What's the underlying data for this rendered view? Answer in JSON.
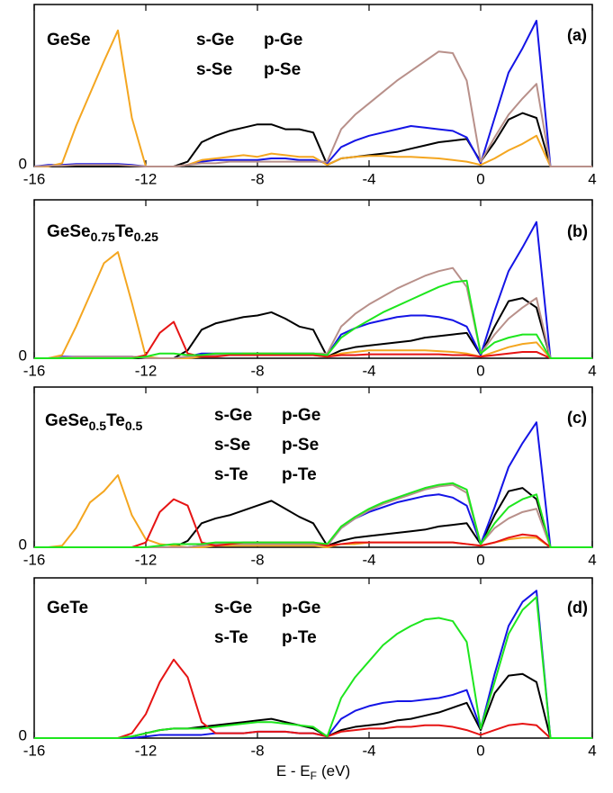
{
  "chart_data": [
    {
      "type": "line",
      "title": [
        "GeSe"
      ],
      "panel_label": "(a)",
      "x": [
        -16,
        -15.5,
        -15,
        -14.5,
        -14,
        -13.5,
        -13,
        -12.5,
        -12,
        -11.5,
        -11,
        -10.5,
        -10,
        -9.5,
        -9,
        -8.5,
        -8,
        -7.5,
        -7,
        -6.5,
        -6,
        -5.5,
        -5,
        -4.5,
        -4,
        -3.5,
        -3,
        -2.5,
        -2,
        -1.5,
        -1,
        -0.5,
        0,
        0.5,
        1,
        1.5,
        2,
        2.5,
        3,
        3.5,
        4
      ],
      "xlim": [
        -16,
        4
      ],
      "xticks": [
        -16,
        -12,
        -8,
        -4,
        0,
        4
      ],
      "ylim": [
        0,
        10
      ],
      "yticks": [
        0
      ],
      "series": [
        {
          "name": "s-Ge",
          "color": "#000000",
          "values": [
            0,
            0,
            0,
            0,
            0,
            0,
            0,
            0,
            0,
            0,
            0,
            0.3,
            1.5,
            1.9,
            2.2,
            2.4,
            2.6,
            2.6,
            2.3,
            2.3,
            2.1,
            0.1,
            0.5,
            0.6,
            0.7,
            0.8,
            0.9,
            1.1,
            1.3,
            1.5,
            1.6,
            1.7,
            0.3,
            1.5,
            2.9,
            3.3,
            3.0,
            0,
            0,
            0,
            0
          ]
        },
        {
          "name": "p-Ge",
          "color": "#1414e6",
          "values": [
            0,
            0.1,
            0.1,
            0.15,
            0.15,
            0.15,
            0.15,
            0.1,
            0,
            0,
            0,
            0.1,
            0.3,
            0.4,
            0.4,
            0.4,
            0.4,
            0.5,
            0.5,
            0.4,
            0.4,
            0.2,
            1.2,
            1.6,
            1.9,
            2.1,
            2.3,
            2.5,
            2.4,
            2.3,
            2.2,
            1.8,
            0.2,
            3.0,
            5.8,
            7.3,
            9.0,
            0,
            0,
            0,
            0
          ]
        },
        {
          "name": "s-Se",
          "color": "#f4a620",
          "values": [
            0,
            0,
            0.2,
            2.5,
            4.5,
            6.5,
            8.4,
            3.0,
            0,
            0,
            0,
            0.1,
            0.4,
            0.5,
            0.6,
            0.7,
            0.6,
            0.8,
            0.7,
            0.6,
            0.6,
            0.1,
            0.5,
            0.6,
            0.65,
            0.65,
            0.6,
            0.6,
            0.55,
            0.5,
            0.4,
            0.3,
            0.1,
            0.5,
            1.0,
            1.4,
            1.9,
            0,
            0,
            0,
            0
          ]
        },
        {
          "name": "p-Se",
          "color": "#b8908a",
          "values": [
            0,
            0.05,
            0.05,
            0.1,
            0.1,
            0.1,
            0.1,
            0.05,
            0,
            0,
            0,
            0.1,
            0.2,
            0.2,
            0.3,
            0.3,
            0.3,
            0.3,
            0.3,
            0.3,
            0.3,
            0.3,
            2.3,
            3.2,
            3.9,
            4.6,
            5.3,
            5.9,
            6.5,
            7.1,
            7.0,
            5.3,
            0.3,
            1.8,
            3.2,
            4.2,
            5.1,
            0,
            0,
            0,
            0
          ]
        }
      ]
    },
    {
      "type": "line",
      "title": [
        "GeSe",
        "0.75",
        "Te",
        "0.25"
      ],
      "panel_label": "(b)",
      "x": [
        -16,
        -15.5,
        -15,
        -14.5,
        -14,
        -13.5,
        -13,
        -12.5,
        -12,
        -11.5,
        -11,
        -10.5,
        -10,
        -9.5,
        -9,
        -8.5,
        -8,
        -7.5,
        -7,
        -6.5,
        -6,
        -5.5,
        -5,
        -4.5,
        -4,
        -3.5,
        -3,
        -2.5,
        -2,
        -1.5,
        -1,
        -0.5,
        0,
        0.5,
        1,
        1.5,
        2,
        2.5,
        3,
        3.5,
        4
      ],
      "xlim": [
        -16,
        4
      ],
      "xticks": [
        -16,
        -12,
        -8,
        -4,
        0,
        4
      ],
      "ylim": [
        0,
        10
      ],
      "yticks": [
        0
      ],
      "series": [
        {
          "color": "#000000",
          "values": [
            0,
            0,
            0,
            0,
            0,
            0,
            0,
            0,
            0,
            0,
            0,
            0.5,
            1.8,
            2.2,
            2.4,
            2.6,
            2.7,
            2.9,
            2.5,
            2.0,
            1.8,
            0.1,
            0.5,
            0.7,
            0.8,
            0.9,
            1.0,
            1.1,
            1.3,
            1.4,
            1.5,
            1.6,
            0.2,
            2.0,
            3.6,
            3.8,
            3.2,
            0,
            0,
            0,
            0
          ]
        },
        {
          "color": "#1414e6",
          "values": [
            0,
            0,
            0.1,
            0.1,
            0.1,
            0.1,
            0.1,
            0.1,
            0,
            0,
            0,
            0.1,
            0.3,
            0.3,
            0.3,
            0.3,
            0.3,
            0.3,
            0.3,
            0.3,
            0.3,
            0.2,
            1.5,
            1.9,
            2.2,
            2.4,
            2.6,
            2.7,
            2.7,
            2.6,
            2.4,
            2.0,
            0.2,
            3.0,
            5.5,
            7.0,
            8.6,
            0,
            0,
            0,
            0
          ]
        },
        {
          "color": "#f4a620",
          "values": [
            0,
            0,
            0.2,
            2.0,
            4.0,
            6.0,
            6.7,
            3.5,
            0.1,
            0,
            0,
            0,
            0.1,
            0.2,
            0.2,
            0.3,
            0.3,
            0.3,
            0.2,
            0.2,
            0.2,
            0.1,
            0.3,
            0.4,
            0.5,
            0.5,
            0.5,
            0.5,
            0.5,
            0.45,
            0.4,
            0.3,
            0.1,
            0.4,
            0.7,
            0.9,
            1.0,
            0,
            0,
            0,
            0
          ]
        },
        {
          "color": "#b8908a",
          "values": [
            0,
            0,
            0.05,
            0.1,
            0.1,
            0.1,
            0.1,
            0.1,
            0,
            0,
            0,
            0.1,
            0.2,
            0.2,
            0.2,
            0.3,
            0.3,
            0.3,
            0.3,
            0.3,
            0.3,
            0.3,
            2.0,
            2.8,
            3.4,
            3.9,
            4.4,
            4.8,
            5.2,
            5.5,
            5.7,
            4.5,
            0.3,
            1.5,
            2.5,
            3.2,
            3.8,
            0,
            0,
            0,
            0
          ]
        },
        {
          "color": "#e61414",
          "values": [
            0,
            0,
            0,
            0,
            0,
            0,
            0,
            0,
            0.2,
            1.6,
            2.3,
            0.3,
            0.1,
            0.1,
            0.2,
            0.2,
            0.2,
            0.2,
            0.2,
            0.2,
            0.2,
            0.1,
            0.2,
            0.2,
            0.25,
            0.25,
            0.25,
            0.25,
            0.25,
            0.25,
            0.2,
            0.2,
            0.1,
            0.2,
            0.3,
            0.4,
            0.4,
            0,
            0,
            0,
            0
          ]
        },
        {
          "color": "#1ee61e",
          "values": [
            0,
            0,
            0,
            0,
            0,
            0,
            0,
            0,
            0.1,
            0.3,
            0.3,
            0.2,
            0.2,
            0.3,
            0.3,
            0.3,
            0.3,
            0.3,
            0.3,
            0.3,
            0.3,
            0.2,
            1.3,
            1.9,
            2.4,
            2.9,
            3.3,
            3.7,
            4.1,
            4.5,
            4.8,
            4.9,
            0.3,
            1.0,
            1.3,
            1.5,
            1.5,
            0,
            0,
            0,
            0
          ]
        }
      ]
    },
    {
      "type": "line",
      "title": [
        "GeSe",
        "0.5",
        "Te",
        "0.5"
      ],
      "panel_label": "(c)",
      "x": [
        -16,
        -15.5,
        -15,
        -14.5,
        -14,
        -13.5,
        -13,
        -12.5,
        -12,
        -11.5,
        -11,
        -10.5,
        -10,
        -9.5,
        -9,
        -8.5,
        -8,
        -7.5,
        -7,
        -6.5,
        -6,
        -5.5,
        -5,
        -4.5,
        -4,
        -3.5,
        -3,
        -2.5,
        -2,
        -1.5,
        -1,
        -0.5,
        0,
        0.5,
        1,
        1.5,
        2,
        2.5,
        3,
        3.5,
        4
      ],
      "xlim": [
        -16,
        4
      ],
      "xticks": [
        -16,
        -12,
        -8,
        -4,
        0,
        4
      ],
      "ylim": [
        0,
        10
      ],
      "yticks": [
        0
      ],
      "series": [
        {
          "name": "s-Ge",
          "color": "#000000",
          "values": [
            0,
            0,
            0,
            0,
            0,
            0,
            0,
            0,
            0,
            0,
            0,
            0.4,
            1.5,
            1.8,
            2.0,
            2.3,
            2.6,
            2.9,
            2.4,
            1.9,
            1.5,
            0.1,
            0.4,
            0.6,
            0.7,
            0.8,
            0.9,
            1.0,
            1.1,
            1.3,
            1.4,
            1.5,
            0.2,
            2.0,
            3.5,
            3.7,
            3.0,
            0,
            0,
            0,
            0
          ]
        },
        {
          "name": "p-Ge",
          "color": "#1414e6",
          "values": [
            0,
            0,
            0,
            0,
            0,
            0,
            0,
            0,
            0,
            0,
            0,
            0,
            0.1,
            0.2,
            0.2,
            0.2,
            0.2,
            0.2,
            0.2,
            0.2,
            0.2,
            0.1,
            1.2,
            1.8,
            2.2,
            2.5,
            2.8,
            3.0,
            3.2,
            3.3,
            3.1,
            2.6,
            0.2,
            2.5,
            5.0,
            6.5,
            7.8,
            0,
            0,
            0,
            0
          ]
        },
        {
          "name": "s-Se",
          "color": "#f4a620",
          "values": [
            0,
            0,
            0.1,
            1.2,
            2.8,
            3.5,
            4.5,
            2.0,
            0.5,
            0.2,
            0.1,
            0,
            0,
            0.1,
            0.1,
            0.1,
            0.1,
            0.1,
            0.1,
            0.1,
            0.1,
            0,
            0.2,
            0.2,
            0.3,
            0.3,
            0.3,
            0.3,
            0.3,
            0.3,
            0.3,
            0.2,
            0.1,
            0.3,
            0.5,
            0.6,
            0.6,
            0,
            0,
            0,
            0
          ]
        },
        {
          "name": "p-Se",
          "color": "#b8908a",
          "values": [
            0,
            0,
            0,
            0,
            0,
            0,
            0,
            0,
            0,
            0,
            0,
            0,
            0.1,
            0.2,
            0.2,
            0.2,
            0.2,
            0.2,
            0.2,
            0.2,
            0.2,
            0.1,
            1.2,
            1.8,
            2.3,
            2.7,
            3.0,
            3.3,
            3.6,
            3.8,
            3.9,
            3.4,
            0.2,
            1.2,
            1.8,
            2.2,
            2.4,
            0,
            0,
            0,
            0
          ]
        },
        {
          "name": "s-Te",
          "color": "#e61414",
          "values": [
            0,
            0,
            0,
            0,
            0,
            0,
            0,
            0,
            0.3,
            2.2,
            3.0,
            2.6,
            0.3,
            0.1,
            0.2,
            0.3,
            0.3,
            0.3,
            0.3,
            0.3,
            0.3,
            0.1,
            0.2,
            0.3,
            0.3,
            0.3,
            0.3,
            0.3,
            0.3,
            0.3,
            0.3,
            0.2,
            0.1,
            0.3,
            0.6,
            0.8,
            0.7,
            0,
            0,
            0,
            0
          ]
        },
        {
          "name": "p-Te",
          "color": "#1ee61e",
          "values": [
            0,
            0,
            0,
            0,
            0,
            0,
            0,
            0,
            0,
            0.1,
            0.2,
            0.2,
            0.2,
            0.3,
            0.3,
            0.3,
            0.3,
            0.3,
            0.3,
            0.3,
            0.3,
            0.2,
            1.3,
            1.9,
            2.4,
            2.8,
            3.1,
            3.4,
            3.7,
            3.9,
            4.0,
            3.6,
            0.2,
            1.5,
            2.5,
            3.0,
            3.3,
            0,
            0,
            0,
            0
          ]
        }
      ]
    },
    {
      "type": "line",
      "title": [
        "GeTe"
      ],
      "panel_label": "(d)",
      "x": [
        -16,
        -15.5,
        -15,
        -14.5,
        -14,
        -13.5,
        -13,
        -12.5,
        -12,
        -11.5,
        -11,
        -10.5,
        -10,
        -9.5,
        -9,
        -8.5,
        -8,
        -7.5,
        -7,
        -6.5,
        -6,
        -5.5,
        -5,
        -4.5,
        -4,
        -3.5,
        -3,
        -2.5,
        -2,
        -1.5,
        -1,
        -0.5,
        0,
        0.5,
        1,
        1.5,
        2,
        2.5,
        3,
        3.5,
        4
      ],
      "xlim": [
        -16,
        4
      ],
      "xticks": [
        -16,
        -12,
        -8,
        -4,
        0,
        4
      ],
      "ylim": [
        0,
        10
      ],
      "yticks": [
        0
      ],
      "xlabel": [
        "E - E",
        "F",
        "(eV)"
      ],
      "series": [
        {
          "name": "s-Ge",
          "color": "#000000",
          "values": [
            0,
            0,
            0,
            0,
            0,
            0,
            0,
            0.1,
            0.3,
            0.5,
            0.6,
            0.6,
            0.7,
            0.8,
            0.9,
            1.0,
            1.1,
            1.2,
            1.0,
            0.8,
            0.6,
            0.1,
            0.5,
            0.7,
            0.8,
            0.9,
            1.1,
            1.2,
            1.4,
            1.6,
            1.9,
            2.2,
            0.5,
            2.8,
            3.9,
            4.0,
            3.5,
            0,
            0,
            0,
            0
          ]
        },
        {
          "name": "p-Ge",
          "color": "#1414e6",
          "values": [
            0,
            0,
            0,
            0,
            0,
            0,
            0,
            0,
            0.1,
            0.2,
            0.2,
            0.2,
            0.2,
            0.3,
            0.3,
            0.3,
            0.4,
            0.4,
            0.4,
            0.3,
            0.3,
            0.1,
            1.2,
            1.7,
            2.0,
            2.2,
            2.3,
            2.3,
            2.4,
            2.5,
            2.7,
            3.0,
            0.6,
            4.0,
            7.0,
            8.5,
            9.2,
            0,
            0,
            0,
            0
          ]
        },
        {
          "name": "s-Te",
          "color": "#e61414",
          "values": [
            0,
            0,
            0,
            0,
            0,
            0,
            0,
            0.3,
            1.5,
            3.5,
            4.9,
            3.8,
            1.0,
            0.3,
            0.3,
            0.3,
            0.4,
            0.4,
            0.4,
            0.3,
            0.3,
            0.1,
            0.4,
            0.5,
            0.6,
            0.6,
            0.7,
            0.7,
            0.8,
            0.8,
            0.7,
            0.5,
            0.2,
            0.5,
            0.8,
            0.9,
            0.8,
            0,
            0,
            0,
            0
          ]
        },
        {
          "name": "p-Te",
          "color": "#1ee61e",
          "values": [
            0,
            0,
            0,
            0,
            0,
            0,
            0,
            0.1,
            0.3,
            0.5,
            0.6,
            0.6,
            0.6,
            0.7,
            0.8,
            0.9,
            1.0,
            1.0,
            0.9,
            0.8,
            0.7,
            0.1,
            2.5,
            3.8,
            4.8,
            5.8,
            6.5,
            7.0,
            7.4,
            7.5,
            7.3,
            6.0,
            0.6,
            3.5,
            6.5,
            8.0,
            8.8,
            0,
            0,
            0,
            0
          ]
        }
      ]
    }
  ]
}
